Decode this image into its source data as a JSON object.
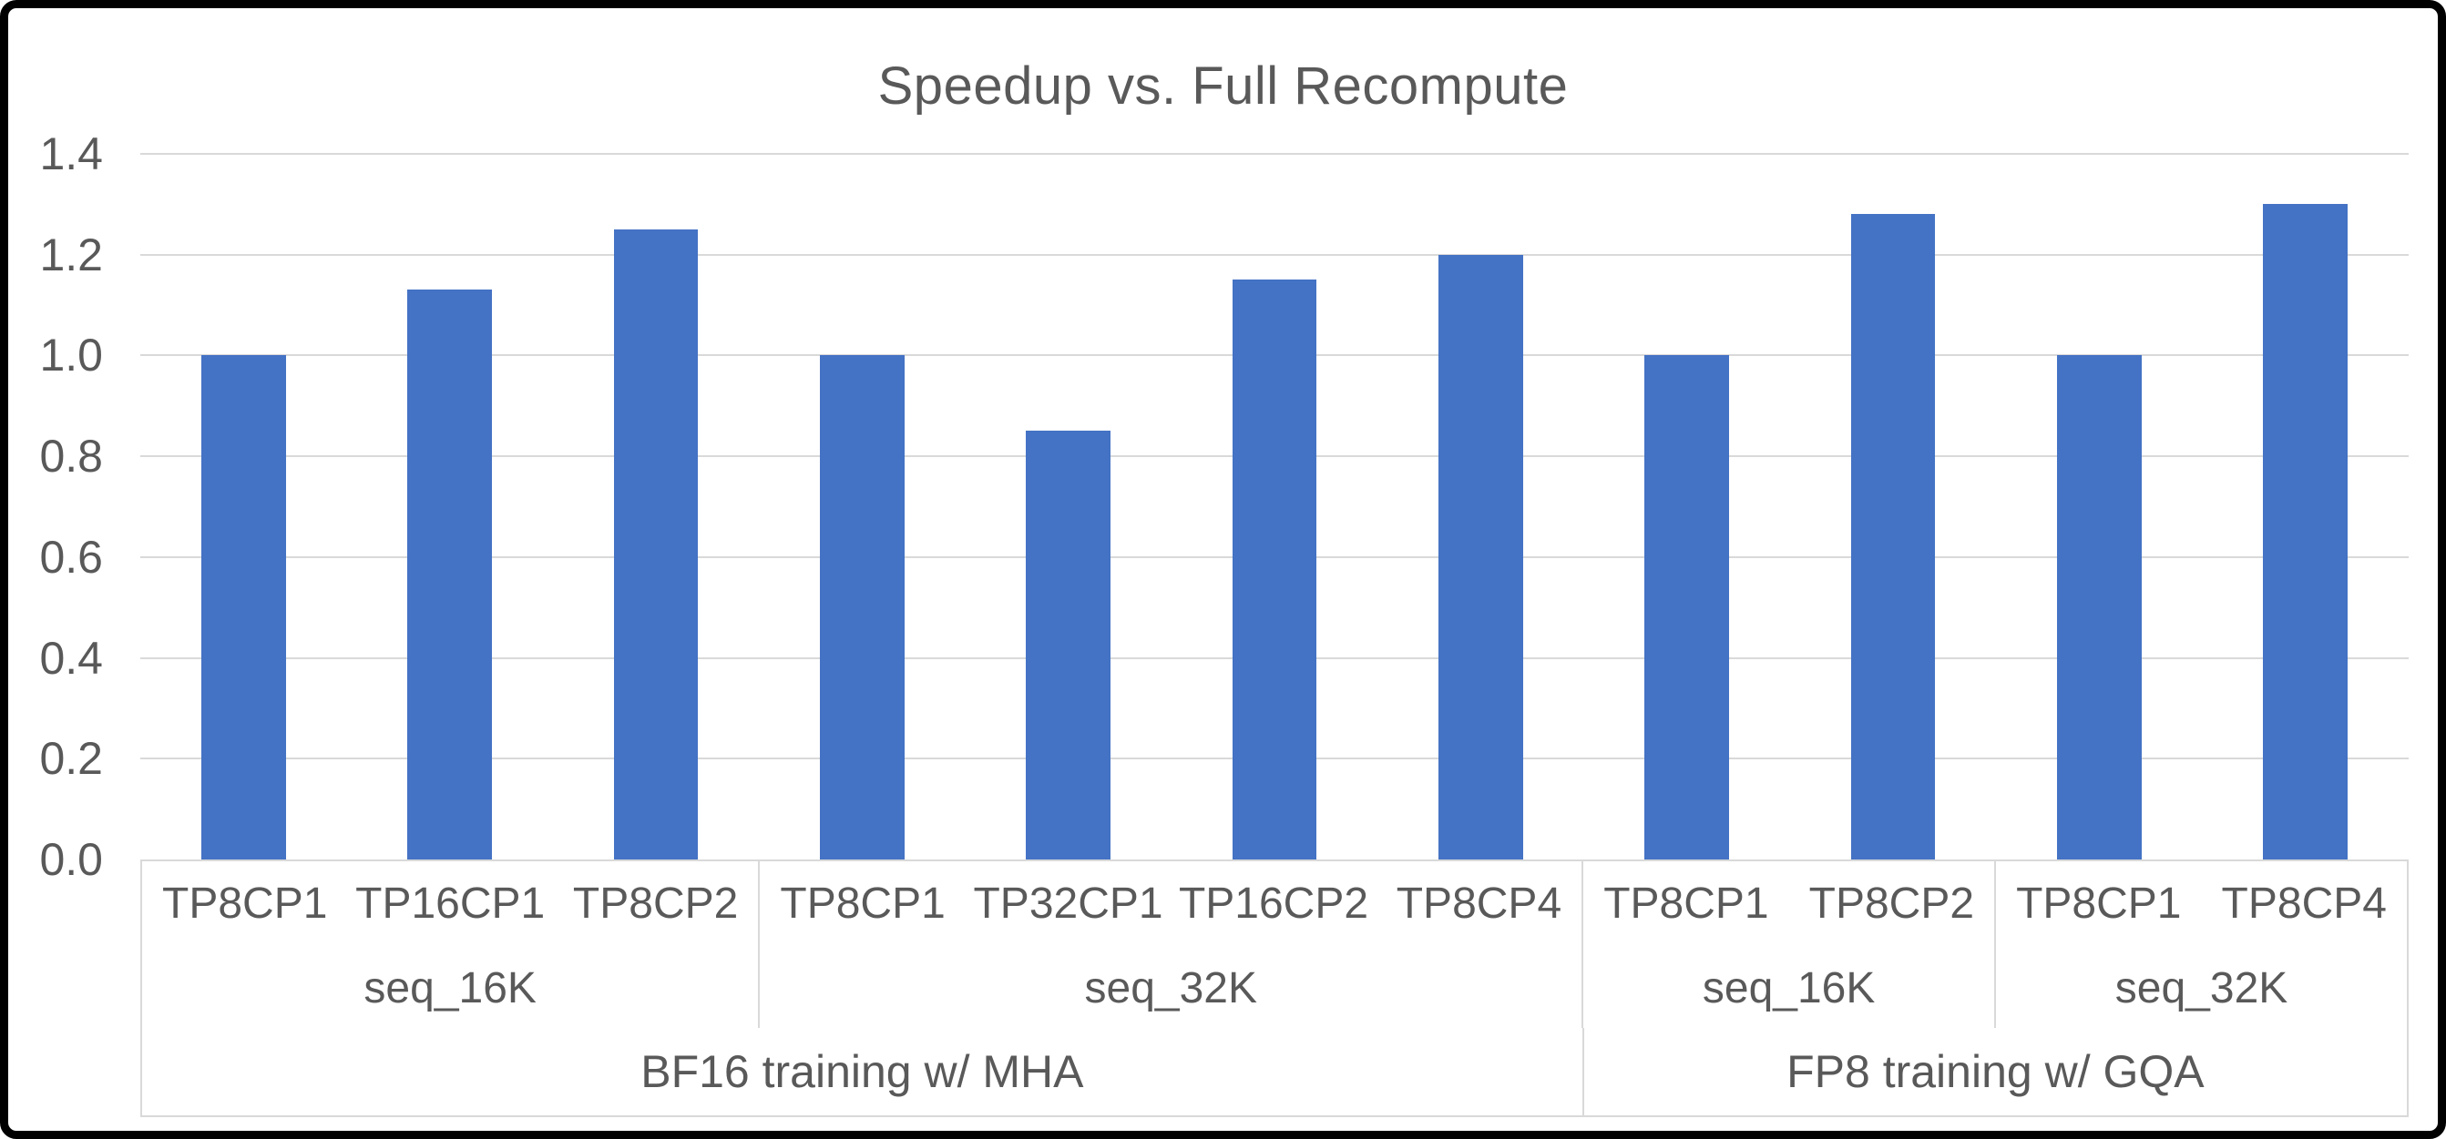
{
  "chart_data": {
    "type": "bar",
    "title": "Speedup vs. Full Recompute",
    "categories": [
      "TP8CP1",
      "TP16CP1",
      "TP8CP2",
      "TP8CP1",
      "TP32CP1",
      "TP16CP2",
      "TP8CP4",
      "TP8CP1",
      "TP8CP2",
      "TP8CP1",
      "TP8CP4"
    ],
    "values": [
      1.0,
      1.13,
      1.25,
      1.0,
      0.85,
      1.15,
      1.2,
      1.0,
      1.28,
      1.0,
      1.3
    ],
    "seq_groups": [
      {
        "label": "seq_16K",
        "span": 3
      },
      {
        "label": "seq_32K",
        "span": 4
      },
      {
        "label": "seq_16K",
        "span": 2
      },
      {
        "label": "seq_32K",
        "span": 2
      }
    ],
    "training_groups": [
      {
        "label": "BF16 training w/ MHA",
        "span": 7
      },
      {
        "label": "FP8 training w/ GQA",
        "span": 4
      }
    ],
    "ylabel": "",
    "xlabel": "",
    "ylim": [
      0,
      1.4
    ],
    "ytick_step": 0.2,
    "yticks": [
      "1.4",
      "1.2",
      "1.0",
      "0.8",
      "0.6",
      "0.4",
      "0.2",
      "0.0"
    ],
    "grid": true,
    "legend": "none",
    "colors": {
      "bar": "#4472C4",
      "text": "#595959",
      "gridline": "#D9D9D9",
      "axis_table_border": "#D9D9D9",
      "background": "#FFFFFF",
      "frame_border": "#000000"
    }
  }
}
